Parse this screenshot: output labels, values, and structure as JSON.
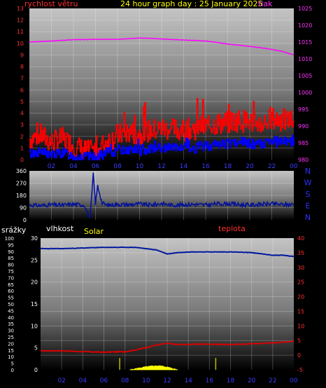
{
  "header": {
    "title": "24 hour graph day : 25 January 2025",
    "wind_label": "rychlost větru",
    "pressure_label": "tlak"
  },
  "colors": {
    "wind_gust": "#ff0000",
    "wind_avg": "#0000ff",
    "pressure": "#ff00ff",
    "direction": "#0010a0",
    "humidity": "#0018a0",
    "temperature": "#dd0000",
    "solar": "#ffff00",
    "left_axis_red": "#ff3030",
    "right_axis_magenta": "#ff33ff",
    "compass_blue": "#3030ff"
  },
  "chart_data": [
    {
      "type": "line",
      "name": "wind-pressure",
      "x_tick_labels": [
        "02",
        "04",
        "06",
        "08",
        "10",
        "12",
        "14",
        "16",
        "18",
        "20",
        "22",
        "00"
      ],
      "left_axis": {
        "ylabel": "rychlost větru",
        "ylim": [
          0,
          13
        ],
        "ticks": [
          0,
          1,
          2,
          3,
          4,
          5,
          6,
          7,
          8,
          9,
          10,
          11,
          12,
          13
        ]
      },
      "right_axis": {
        "ylabel": "tlak",
        "ylim": [
          980,
          1025
        ],
        "ticks": [
          980,
          985,
          990,
          995,
          1000,
          1005,
          1010,
          1015,
          1020,
          1025
        ]
      },
      "series": [
        {
          "name": "",
          "axis": "right",
          "x": [
            0,
            2,
            4,
            6,
            8,
            10,
            11,
            12,
            14,
            16,
            17,
            18,
            20,
            21,
            22,
            23,
            23.5,
            24
          ],
          "values": [
            1015.0,
            1015.3,
            1015.7,
            1015.8,
            1015.8,
            1016.2,
            1016.1,
            1015.9,
            1015.6,
            1015.3,
            1014.9,
            1014.4,
            1013.7,
            1013.3,
            1012.8,
            1012.2,
            1011.6,
            1011.2
          ]
        },
        {
          "name": "",
          "axis": "left",
          "x": [
            0,
            1,
            2,
            3,
            4,
            5,
            6,
            7,
            8,
            9,
            10,
            11,
            12,
            13,
            14,
            15,
            16,
            17,
            18,
            19,
            20,
            21,
            22,
            23,
            24
          ],
          "values": [
            1.8,
            2.1,
            1.5,
            1.8,
            1.2,
            0.8,
            0.6,
            1.6,
            2.1,
            2.4,
            2.2,
            2.5,
            2.7,
            2.6,
            2.5,
            2.7,
            2.9,
            3.1,
            3.2,
            3.4,
            3.3,
            3.1,
            3.5,
            3.4,
            3.3
          ]
        },
        {
          "name": "",
          "axis": "left",
          "x": [
            0,
            1,
            2,
            3,
            4,
            5,
            6,
            7,
            8,
            9,
            10,
            11,
            12,
            13,
            14,
            15,
            16,
            17,
            18,
            19,
            20,
            21,
            22,
            23,
            24
          ],
          "values": [
            0.5,
            0.7,
            0.4,
            0.6,
            0.3,
            0.2,
            0.2,
            0.6,
            0.8,
            0.9,
            0.8,
            1.0,
            1.1,
            1.0,
            0.9,
            1.0,
            1.2,
            1.3,
            1.4,
            1.5,
            1.4,
            1.3,
            1.5,
            1.6,
            1.5
          ]
        }
      ]
    },
    {
      "type": "line",
      "name": "wind-direction",
      "x_tick_labels": [
        "02",
        "04",
        "06",
        "08",
        "10",
        "12",
        "14",
        "16",
        "18",
        "20",
        "22",
        "00"
      ],
      "ylim": [
        0,
        360
      ],
      "y_ticks": [
        0,
        90,
        180,
        270,
        360
      ],
      "y_tick_labels": [
        "0",
        "90",
        "180",
        "270",
        "360"
      ],
      "compass_labels": [
        "N",
        "W",
        "S",
        "E",
        "N"
      ],
      "series": [
        {
          "name": "",
          "x": [
            0,
            1,
            2,
            3,
            4,
            5,
            5.5,
            5.8,
            6,
            6.2,
            6.6,
            7,
            8,
            9,
            10,
            11,
            12,
            13,
            14,
            15,
            16,
            17,
            18,
            19,
            20,
            21,
            22,
            23,
            24
          ],
          "values": [
            110,
            105,
            112,
            108,
            115,
            110,
            0,
            335,
            120,
            250,
            125,
            108,
            115,
            112,
            118,
            110,
            120,
            108,
            112,
            115,
            110,
            118,
            120,
            112,
            110,
            115,
            118,
            112,
            115
          ]
        }
      ]
    },
    {
      "type": "line",
      "name": "rain-humidity-solar-temperature",
      "x_tick_labels": [
        "02",
        "04",
        "06",
        "08",
        "10",
        "12",
        "14",
        "16",
        "18",
        "20",
        "22",
        "00"
      ],
      "rain_axis": {
        "ylabel": "srážky",
        "ylim": [
          0,
          100
        ],
        "ticks": [
          0,
          5,
          10,
          15,
          20,
          25,
          30,
          35,
          40,
          45,
          50,
          55,
          60,
          65,
          70,
          75,
          80,
          85,
          90,
          95,
          100
        ]
      },
      "humidity_axis": {
        "ylabel": "vlhkost",
        "ylim": [
          0,
          30
        ],
        "ticks": [
          0,
          5,
          10,
          15,
          20,
          25,
          30
        ]
      },
      "solar_label": "Solar",
      "temperature_axis": {
        "ylabel": "teplota",
        "ylim": [
          -5,
          40
        ],
        "ticks": [
          -5,
          0,
          5,
          10,
          15,
          20,
          25,
          30,
          35,
          40
        ]
      },
      "series": [
        {
          "name": "",
          "axis": "rain",
          "x": [
            0,
            2,
            4,
            6,
            8,
            9,
            10,
            11,
            12,
            13,
            14,
            16,
            18,
            20,
            21,
            22,
            23,
            24
          ],
          "values": [
            92,
            92,
            92.5,
            93,
            93,
            93,
            92,
            91,
            88,
            89,
            89.5,
            89.5,
            89.5,
            89,
            88,
            87,
            87,
            86
          ]
        },
        {
          "name": "",
          "axis": "temperature",
          "x": [
            0,
            2,
            4,
            6,
            8,
            9,
            10,
            11,
            12,
            13,
            14,
            16,
            18,
            20,
            22,
            24
          ],
          "values": [
            1.5,
            1.5,
            1.2,
            1.0,
            1.2,
            1.8,
            2.6,
            3.5,
            4.0,
            3.6,
            3.7,
            3.8,
            3.6,
            3.9,
            4.2,
            4.8
          ]
        },
        {
          "name": "",
          "axis": "rain",
          "x": [
            8.5,
            9,
            9.5,
            10,
            10.5,
            11,
            11.5,
            12,
            12.5,
            13
          ],
          "values": [
            0,
            0.8,
            1.5,
            2.2,
            2.7,
            3.0,
            2.8,
            2.0,
            1.0,
            0
          ]
        }
      ]
    }
  ]
}
